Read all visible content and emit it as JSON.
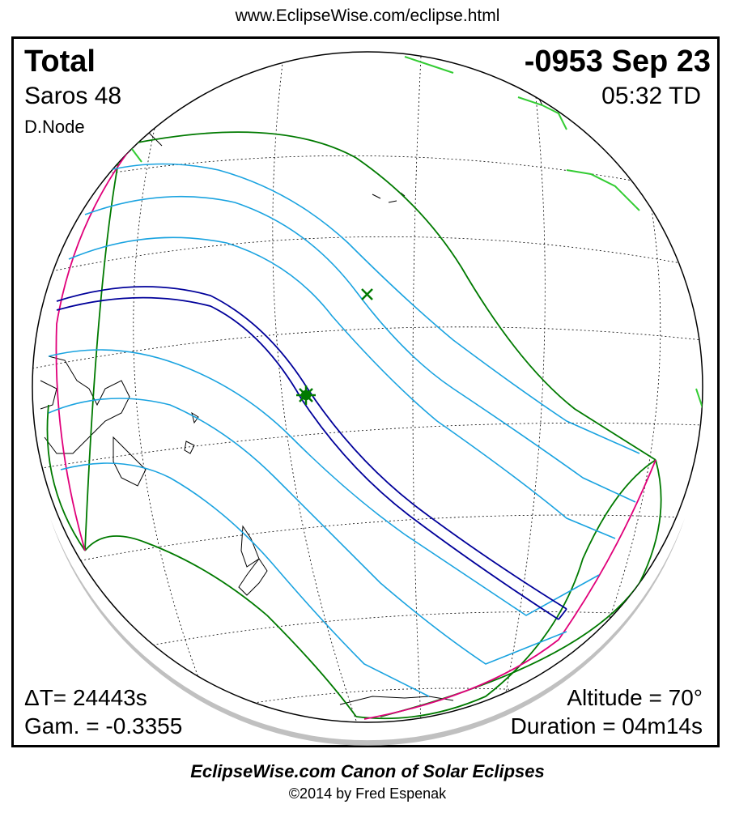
{
  "header": {
    "url": "www.EclipseWise.com/eclipse.html"
  },
  "eclipse": {
    "type": "Total",
    "date": "-0953 Sep 23",
    "saros": "Saros  48",
    "time": "05:32 TD",
    "node": "D.Node",
    "delta_t": "ΔT=  24443s",
    "gamma": "Gam. = -0.3355",
    "altitude": "Altitude = 70°",
    "duration": "Duration = 04m14s"
  },
  "footer": {
    "title": "EclipseWise.com Canon of Solar Eclipses",
    "copyright": "©2014 by Fred Espenak"
  },
  "colors": {
    "central_path": "#00009a",
    "partial_limits": "#1aa3e0",
    "penumbral_outline": "#007a00",
    "rise_set_curve": "#e0007a",
    "coastline": "#000000",
    "graticule": "#000000",
    "land_highlight": "#33cc33",
    "globe_shadow": "#b0b0b0"
  },
  "markers": {
    "greatest_eclipse": "star-marker",
    "sub_solar_point": "x-marker"
  }
}
